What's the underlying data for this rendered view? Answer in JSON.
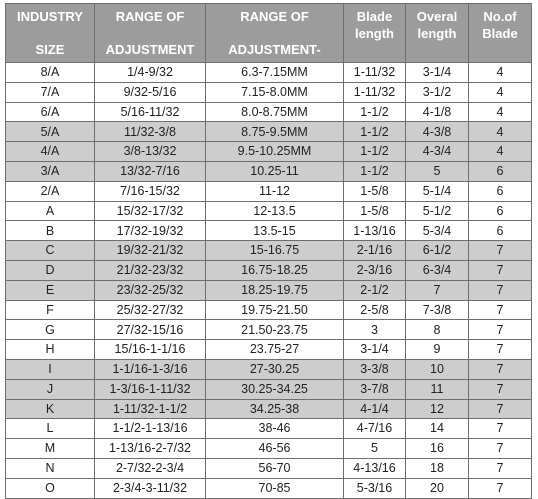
{
  "headers": [
    {
      "line1": "INDUSTRY",
      "line2": "SIZE"
    },
    {
      "line1": "RANGE OF",
      "line2": "ADJUSTMENT"
    },
    {
      "line1": "RANGE OF",
      "line2": "ADJUSTMENT-"
    },
    {
      "line1": "Blade",
      "line2": "length"
    },
    {
      "line1": "Overal",
      "line2": "length"
    },
    {
      "line1": "No.of",
      "line2": "Blade"
    }
  ],
  "rows": [
    {
      "shaded": false,
      "cells": [
        "8/A",
        "1/4-9/32",
        "6.3-7.15MM",
        "1-11/32",
        "3-1/4",
        "4"
      ]
    },
    {
      "shaded": false,
      "cells": [
        "7/A",
        "9/32-5/16",
        "7.15-8.0MM",
        "1-11/32",
        "3-1/2",
        "4"
      ]
    },
    {
      "shaded": false,
      "cells": [
        "6/A",
        "5/16-11/32",
        "8.0-8.75MM",
        "1-1/2",
        "4-1/8",
        "4"
      ]
    },
    {
      "shaded": true,
      "cells": [
        "5/A",
        "11/32-3/8",
        "8.75-9.5MM",
        "1-1/2",
        "4-3/8",
        "4"
      ]
    },
    {
      "shaded": true,
      "cells": [
        "4/A",
        "3/8-13/32",
        "9.5-10.25MM",
        "1-1/2",
        "4-3/4",
        "4"
      ]
    },
    {
      "shaded": true,
      "cells": [
        "3/A",
        "13/32-7/16",
        "10.25-11",
        "1-1/2",
        "5",
        "6"
      ]
    },
    {
      "shaded": false,
      "cells": [
        "2/A",
        "7/16-15/32",
        "11-12",
        "1-5/8",
        "5-1/4",
        "6"
      ]
    },
    {
      "shaded": false,
      "cells": [
        "A",
        "15/32-17/32",
        "12-13.5",
        "1-5/8",
        "5-1/2",
        "6"
      ]
    },
    {
      "shaded": false,
      "cells": [
        "B",
        "17/32-19/32",
        "13.5-15",
        "1-13/16",
        "5-3/4",
        "6"
      ]
    },
    {
      "shaded": true,
      "cells": [
        "C",
        "19/32-21/32",
        "15-16.75",
        "2-1/16",
        "6-1/2",
        "7"
      ]
    },
    {
      "shaded": true,
      "cells": [
        "D",
        "21/32-23/32",
        "16.75-18.25",
        "2-3/16",
        "6-3/4",
        "7"
      ]
    },
    {
      "shaded": true,
      "cells": [
        "E",
        "23/32-25/32",
        "18.25-19.75",
        "2-1/2",
        "7",
        "7"
      ]
    },
    {
      "shaded": false,
      "cells": [
        "F",
        "25/32-27/32",
        "19.75-21.50",
        "2-5/8",
        "7-3/8",
        "7"
      ]
    },
    {
      "shaded": false,
      "cells": [
        "G",
        "27/32-15/16",
        "21.50-23.75",
        "3",
        "8",
        "7"
      ]
    },
    {
      "shaded": false,
      "cells": [
        "H",
        "15/16-1-1/16",
        "23.75-27",
        "3-1/4",
        "9",
        "7"
      ]
    },
    {
      "shaded": true,
      "cells": [
        "I",
        "1-1/16-1-3/16",
        "27-30.25",
        "3-3/8",
        "10",
        "7"
      ]
    },
    {
      "shaded": true,
      "cells": [
        "J",
        "1-3/16-1-11/32",
        "30.25-34.25",
        "3-7/8",
        "11",
        "7"
      ]
    },
    {
      "shaded": true,
      "cells": [
        "K",
        "1-11/32-1-1/2",
        "34.25-38",
        "4-1/4",
        "12",
        "7"
      ]
    },
    {
      "shaded": false,
      "cells": [
        "L",
        "1-1/2-1-13/16",
        "38-46",
        "4-7/16",
        "14",
        "7"
      ]
    },
    {
      "shaded": false,
      "cells": [
        "M",
        "1-13/16-2-7/32",
        "46-56",
        "5",
        "16",
        "7"
      ]
    },
    {
      "shaded": false,
      "cells": [
        "N",
        "2-7/32-2-3/4",
        "56-70",
        "4-13/16",
        "18",
        "7"
      ]
    },
    {
      "shaded": false,
      "cells": [
        "O",
        "2-3/4-3-11/32",
        "70-85",
        "5-3/16",
        "20",
        "7"
      ]
    }
  ]
}
